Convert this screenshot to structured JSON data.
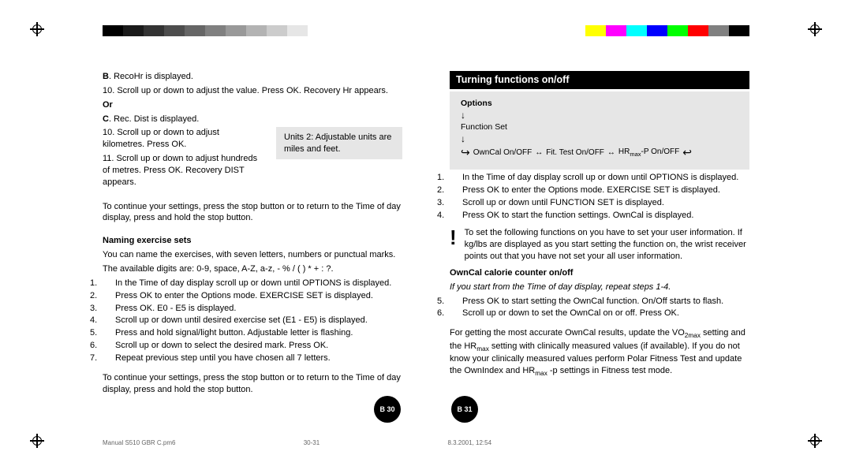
{
  "colorbar_left": [
    "#000000",
    "#1a1a1a",
    "#333333",
    "#4d4d4d",
    "#666666",
    "#808080",
    "#999999",
    "#b3b3b3",
    "#cccccc",
    "#e6e6e6",
    "#ffffff"
  ],
  "colorbar_right": [
    "#ffffff",
    "#ffff00",
    "#ff00ff",
    "#00ffff",
    "#0000ff",
    "#00ff00",
    "#ff0000",
    "#808080",
    "#000000"
  ],
  "left": {
    "b_line": "B. RecoHr is displayed.",
    "step10a": "10. Scroll up or down to adjust the value. Press OK. Recovery Hr appears.",
    "or": "Or",
    "c_line": "C. Rec. Dist is displayed.",
    "step10b": "10. Scroll up or down to adjust kilometres. Press OK.",
    "step11": "11. Scroll up or down to adjust hundreds of metres. Press OK. Recovery DIST appears.",
    "units_box": "Units 2: Adjustable units are miles and feet.",
    "continue1": "To continue your settings, press the stop button or to return to the Time of day display, press and hold the stop button.",
    "naming_header": "Naming exercise sets",
    "naming_intro1": "You can name the exercises, with seven letters, numbers or punctual marks.",
    "naming_intro2": "The available digits are: 0-9, space, A-Z, a-z, - % / ( ) * + : ?.",
    "n1": "In the Time of day display scroll up or down until OPTIONS is displayed.",
    "n2": "Press OK to enter the Options mode. EXERCISE SET is displayed.",
    "n3": "Press OK. E0 - E5 is displayed.",
    "n4": "Scroll up or down until desired exercise set (E1 - E5) is displayed.",
    "n5": "Press and hold signal/light button. Adjustable letter is flashing.",
    "n6": "Scroll up or down to select the desired mark. Press OK.",
    "n7": "Repeat previous step until you have chosen all 7 letters.",
    "continue2": "To continue your settings, press the stop button or to return to the Time of day display, press and hold the stop button."
  },
  "right": {
    "header": "Turning functions on/off",
    "opt_title": "Options",
    "opt_fn": "Function Set",
    "opt_flow_1": "OwnCal On/OFF",
    "opt_flow_2": "Fit. Test On/OFF",
    "opt_flow_3_pre": "HR",
    "opt_flow_3_sub": "max",
    "opt_flow_3_post": "-P On/OFF",
    "r1": "In the Time of day display scroll up or down until OPTIONS is displayed.",
    "r2": "Press OK to enter the Options mode. EXERCISE SET is displayed.",
    "r3": "Scroll up or down until FUNCTION SET is displayed.",
    "r4": "Press OK to start the function settings. OwnCal is displayed.",
    "warn": "To set the following functions on you have to set your user information. If kg/lbs are displayed as you start setting the function on, the wrist receiver points out that you have not set your all user information.",
    "owncal_header": "OwnCal calorie counter on/off",
    "owncal_italic": "If you start from the Time of day display, repeat steps 1-4.",
    "r5": "Press OK to start setting the OwnCal function. On/Off starts to flash.",
    "r6": "Scroll up or down to set the OwnCal on or off. Press OK.",
    "foot_pre": "For getting the most accurate OwnCal results, update the VO",
    "foot_sub1": "2max",
    "foot_mid1": " setting and the HR",
    "foot_sub2": "max",
    "foot_mid2": " setting with clinically measured values (if available). If you do not know your clinically measured values perform Polar Fitness Test and update the OwnIndex and HR",
    "foot_sub3": "max",
    "foot_post": " -p settings in Fitness test mode."
  },
  "pnum_left": "B 30",
  "pnum_right": "B 31",
  "footer_file": "Manual S510 GBR C.pm6",
  "footer_pages": "30-31",
  "footer_time": "8.3.2001, 12:54"
}
